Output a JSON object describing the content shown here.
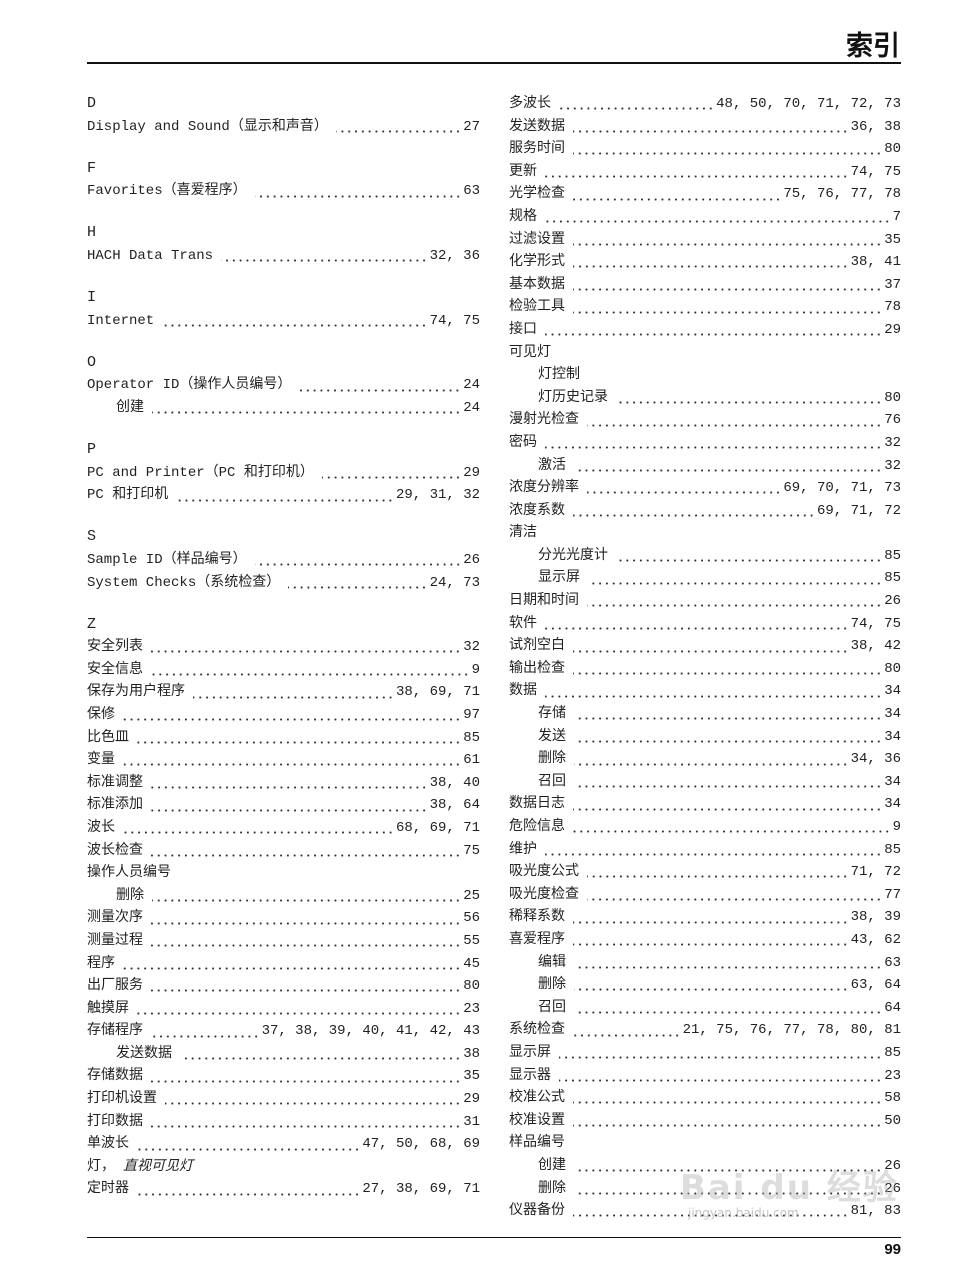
{
  "header": {
    "title": "索引"
  },
  "footer": {
    "page_number": "99"
  },
  "watermark": {
    "logo_text": "Bai du 经验",
    "url": "jingyan.baidu.com"
  },
  "columns": {
    "left": [
      {
        "type": "heading",
        "text": "D"
      },
      {
        "type": "entry",
        "label": "Display and Sound（显示和声音）",
        "pages": "27"
      },
      {
        "type": "spacer"
      },
      {
        "type": "heading",
        "text": "F"
      },
      {
        "type": "entry",
        "label": "Favorites（喜爱程序）",
        "pages": "63"
      },
      {
        "type": "spacer"
      },
      {
        "type": "heading",
        "text": "H"
      },
      {
        "type": "entry",
        "label": "HACH Data Trans",
        "pages": "32,  36"
      },
      {
        "type": "spacer"
      },
      {
        "type": "heading",
        "text": "I"
      },
      {
        "type": "entry",
        "label": "Internet",
        "pages": "74,  75"
      },
      {
        "type": "spacer"
      },
      {
        "type": "heading",
        "text": "O"
      },
      {
        "type": "entry",
        "label": "Operator ID（操作人员编号）",
        "pages": "24"
      },
      {
        "type": "sub",
        "label": "创建",
        "pages": "24"
      },
      {
        "type": "spacer"
      },
      {
        "type": "heading",
        "text": "P"
      },
      {
        "type": "entry",
        "label": "PC and Printer（PC 和打印机）",
        "pages": "29"
      },
      {
        "type": "entry",
        "label": "PC 和打印机",
        "pages": "29,  31,  32"
      },
      {
        "type": "spacer"
      },
      {
        "type": "heading",
        "text": "S"
      },
      {
        "type": "entry",
        "label": "Sample ID（样品编号）",
        "pages": "26"
      },
      {
        "type": "entry",
        "label": "System Checks（系统检查）",
        "pages": "24,  73"
      },
      {
        "type": "spacer"
      },
      {
        "type": "heading",
        "text": "Z"
      },
      {
        "type": "entry",
        "label": "安全列表",
        "pages": "32"
      },
      {
        "type": "entry",
        "label": "安全信息",
        "pages": "9"
      },
      {
        "type": "entry",
        "label": "保存为用户程序",
        "pages": "38,  69,  71"
      },
      {
        "type": "entry",
        "label": "保修",
        "pages": "97"
      },
      {
        "type": "entry",
        "label": "比色皿",
        "pages": "85"
      },
      {
        "type": "entry",
        "label": "变量",
        "pages": "61"
      },
      {
        "type": "entry",
        "label": "标准调整",
        "pages": "38,  40"
      },
      {
        "type": "entry",
        "label": "标准添加",
        "pages": "38,  64"
      },
      {
        "type": "entry",
        "label": "波长",
        "pages": "68,  69,  71"
      },
      {
        "type": "entry",
        "label": "波长检查",
        "pages": "75"
      },
      {
        "type": "entry",
        "label": "操作人员编号"
      },
      {
        "type": "sub",
        "label": "删除",
        "pages": "25"
      },
      {
        "type": "entry",
        "label": "测量次序",
        "pages": "56"
      },
      {
        "type": "entry",
        "label": "测量过程",
        "pages": "55"
      },
      {
        "type": "entry",
        "label": "程序",
        "pages": "45"
      },
      {
        "type": "entry",
        "label": "出厂服务",
        "pages": "80"
      },
      {
        "type": "entry",
        "label": "触摸屏",
        "pages": "23"
      },
      {
        "type": "entry",
        "label": "存储程序",
        "pages": "37,  38,  39,  40,  41,  42,  43"
      },
      {
        "type": "sub",
        "label": "发送数据",
        "pages": "38"
      },
      {
        "type": "entry",
        "label": "存储数据",
        "pages": "35"
      },
      {
        "type": "entry",
        "label": "打印机设置",
        "pages": "29"
      },
      {
        "type": "entry",
        "label": "打印数据",
        "pages": "31"
      },
      {
        "type": "entry",
        "label": "单波长",
        "pages": "47,  50,  68,  69"
      },
      {
        "type": "entry",
        "label": "灯，",
        "see": "直视可见灯"
      },
      {
        "type": "entry",
        "label": "定时器",
        "pages": "27,  38,  69,  71"
      }
    ],
    "right": [
      {
        "type": "entry",
        "label": "多波长",
        "pages": "48,  50,  70,  71,  72,  73"
      },
      {
        "type": "entry",
        "label": "发送数据",
        "pages": "36,  38"
      },
      {
        "type": "entry",
        "label": "服务时间",
        "pages": "80"
      },
      {
        "type": "entry",
        "label": "更新",
        "pages": "74,  75"
      },
      {
        "type": "entry",
        "label": "光学检查",
        "pages": "75,  76,  77,  78"
      },
      {
        "type": "entry",
        "label": "规格",
        "pages": "7"
      },
      {
        "type": "entry",
        "label": "过滤设置",
        "pages": "35"
      },
      {
        "type": "entry",
        "label": "化学形式",
        "pages": "38,  41"
      },
      {
        "type": "entry",
        "label": "基本数据",
        "pages": "37"
      },
      {
        "type": "entry",
        "label": "检验工具",
        "pages": "78"
      },
      {
        "type": "entry",
        "label": "接口",
        "pages": "29"
      },
      {
        "type": "entry",
        "label": "可见灯"
      },
      {
        "type": "sub",
        "label": "灯控制"
      },
      {
        "type": "sub",
        "label": "灯历史记录",
        "pages": "80"
      },
      {
        "type": "entry",
        "label": "漫射光检查",
        "pages": "76"
      },
      {
        "type": "entry",
        "label": "密码",
        "pages": "32"
      },
      {
        "type": "sub",
        "label": "激活",
        "pages": "32"
      },
      {
        "type": "entry",
        "label": "浓度分辨率",
        "pages": "69,  70,  71,  73"
      },
      {
        "type": "entry",
        "label": "浓度系数",
        "pages": "69,  71,  72"
      },
      {
        "type": "entry",
        "label": "清洁"
      },
      {
        "type": "sub",
        "label": "分光光度计",
        "pages": "85"
      },
      {
        "type": "sub",
        "label": "显示屏",
        "pages": "85"
      },
      {
        "type": "entry",
        "label": "日期和时间",
        "pages": "26"
      },
      {
        "type": "entry",
        "label": "软件",
        "pages": "74,  75"
      },
      {
        "type": "entry",
        "label": "试剂空白",
        "pages": "38,  42"
      },
      {
        "type": "entry",
        "label": "输出检查",
        "pages": "80"
      },
      {
        "type": "entry",
        "label": "数据",
        "pages": "34"
      },
      {
        "type": "sub",
        "label": "存储",
        "pages": "34"
      },
      {
        "type": "sub",
        "label": "发送",
        "pages": "34"
      },
      {
        "type": "sub",
        "label": "删除",
        "pages": "34,  36"
      },
      {
        "type": "sub",
        "label": "召回",
        "pages": "34"
      },
      {
        "type": "entry",
        "label": "数据日志",
        "pages": "34"
      },
      {
        "type": "entry",
        "label": "危险信息",
        "pages": "9"
      },
      {
        "type": "entry",
        "label": "维护",
        "pages": "85"
      },
      {
        "type": "entry",
        "label": "吸光度公式",
        "pages": "71,  72"
      },
      {
        "type": "entry",
        "label": "吸光度检查",
        "pages": "77"
      },
      {
        "type": "entry",
        "label": "稀释系数",
        "pages": "38,  39"
      },
      {
        "type": "entry",
        "label": "喜爱程序",
        "pages": "43,  62"
      },
      {
        "type": "sub",
        "label": "编辑",
        "pages": "63"
      },
      {
        "type": "sub",
        "label": "删除",
        "pages": "63,  64"
      },
      {
        "type": "sub",
        "label": "召回",
        "pages": "64"
      },
      {
        "type": "entry",
        "label": "系统检查",
        "pages": "21,  75,  76,  77,  78,  80,  81"
      },
      {
        "type": "entry",
        "label": "显示屏",
        "pages": "85"
      },
      {
        "type": "entry",
        "label": "显示器",
        "pages": "23"
      },
      {
        "type": "entry",
        "label": "校准公式",
        "pages": "58"
      },
      {
        "type": "entry",
        "label": "校准设置",
        "pages": "50"
      },
      {
        "type": "entry",
        "label": "样品编号"
      },
      {
        "type": "sub",
        "label": "创建",
        "pages": "26"
      },
      {
        "type": "sub",
        "label": "删除",
        "pages": "26"
      },
      {
        "type": "entry",
        "label": "仪器备份",
        "pages": "81,  83"
      }
    ]
  }
}
